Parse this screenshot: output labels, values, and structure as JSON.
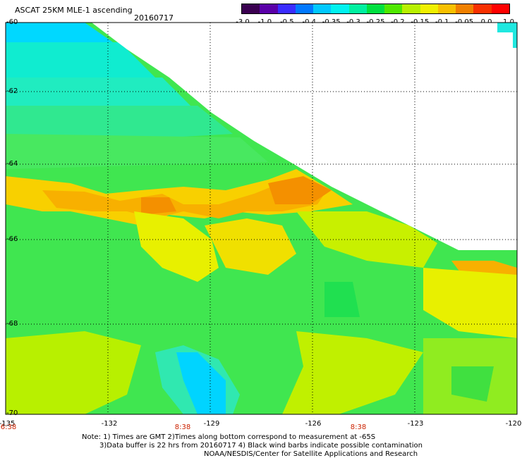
{
  "header": {
    "title": "ASCAT 25KM MLE-1 ascending",
    "date": "20160717"
  },
  "colorbar": {
    "colors": [
      "#3a0050",
      "#5a00a8",
      "#3a2cff",
      "#0078ff",
      "#00c8ff",
      "#00f2f0",
      "#00f0a0",
      "#00e040",
      "#50e800",
      "#b8f000",
      "#f0f000",
      "#f8c000",
      "#f08000",
      "#f83000",
      "#ff0000"
    ],
    "ticks": [
      "-3.0",
      "-1.0",
      "-0.5",
      "-0.4",
      "-0.35",
      "-0.3",
      "-0.25",
      "-0.2",
      "-0.15",
      "-0.1",
      "-0.05",
      "0.0",
      "1.0"
    ]
  },
  "map": {
    "lat_labels": [
      "-60",
      "-62",
      "-64",
      "-66",
      "-68",
      "-70"
    ],
    "lon_labels": [
      "-135",
      "-132",
      "-129",
      "-126",
      "-123",
      "-120"
    ],
    "time_labels": [
      "6:38",
      "8:38",
      "8:38"
    ]
  },
  "notes": {
    "line1": "Note: 1) Times are GMT 2)Times along bottom correspond to measurement at -65S",
    "line2": "3)Data buffer is 22 hrs from 20160717 4) Black wind barbs indicate possible contamination",
    "line3": "NOAA/NESDIS/Center for Satellite Applications and Research"
  }
}
